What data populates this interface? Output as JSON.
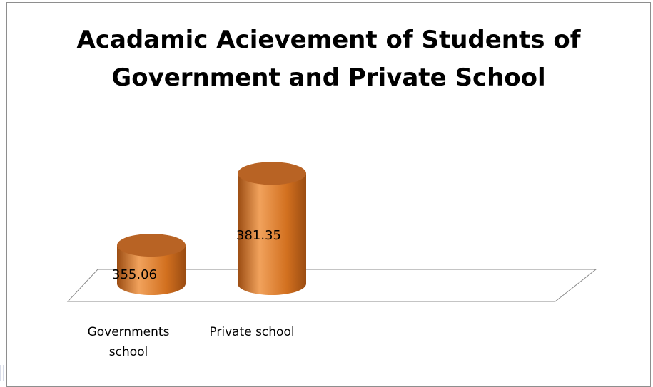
{
  "chart_data": {
    "type": "bar",
    "style": "3d-cylinder",
    "title": "Acadamic Acievement of Students of Government and Private School",
    "categories": [
      "Governments school",
      "Private school"
    ],
    "category_lines": [
      [
        "Governments",
        "school"
      ],
      [
        "Private school"
      ]
    ],
    "values": [
      355.06,
      381.35
    ],
    "data_labels": [
      "355.06",
      "381.35"
    ],
    "xlabel": "",
    "ylabel": "",
    "ylim": [
      341,
      401
    ],
    "grid": false,
    "legend": "none",
    "colors": {
      "bar_fill": "#d2701f",
      "bar_highlight": "#f1a25c",
      "bar_shadow": "#9b4c12",
      "bar_top": "#b86324",
      "floor_stroke": "#8a8a8a"
    }
  }
}
